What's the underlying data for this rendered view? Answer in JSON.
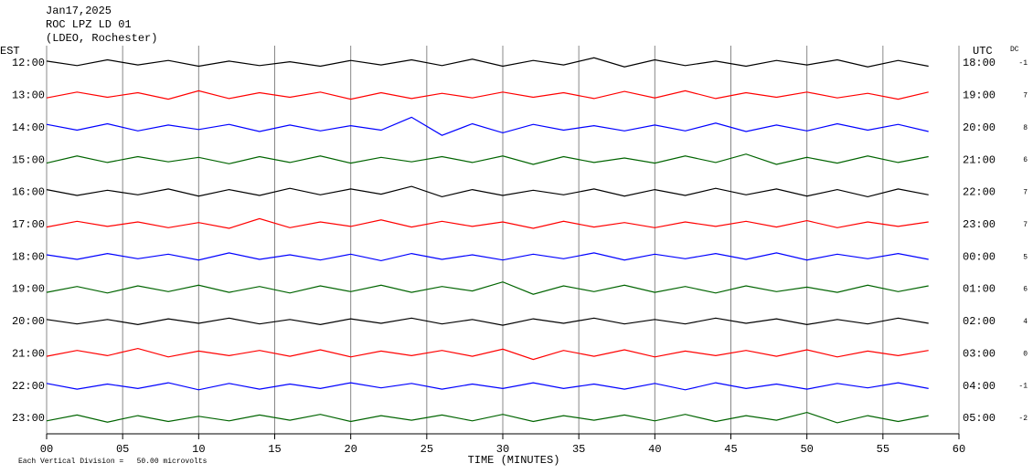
{
  "header": [
    "Jan17,2025",
    "ROC LPZ LD 01",
    "(LDEO, Rochester)"
  ],
  "chart_data": {
    "type": "line",
    "left_label": "EST",
    "right_label": "UTC",
    "dc_label": "DC",
    "xlabel": "TIME (MINUTES)",
    "footer": "Each Vertical Division =   50.00 microvolts",
    "xlim": [
      0,
      60
    ],
    "xticks": [
      {
        "value": 0,
        "label": "00"
      },
      {
        "value": 5,
        "label": "05"
      },
      10,
      15,
      20,
      25,
      30,
      35,
      40,
      45,
      50,
      55,
      60
    ],
    "ylim": [
      -25,
      25
    ],
    "x": [
      0,
      2,
      4,
      6,
      8,
      10,
      12,
      14,
      16,
      18,
      20,
      22,
      24,
      26,
      28,
      30,
      32,
      34,
      36,
      38,
      40,
      42,
      44,
      46,
      48,
      50,
      52,
      54,
      56,
      58
    ],
    "rows": [
      {
        "est": "12:00",
        "utc": "18:00",
        "dc": -1,
        "color": "#000000",
        "values": [
          3,
          -4,
          5,
          -3,
          4,
          -5,
          3,
          -4,
          2,
          -5,
          4,
          -3,
          5,
          -4,
          6,
          -5,
          4,
          -3,
          8,
          -6,
          5,
          -4,
          3,
          -5,
          4,
          -3,
          5,
          -6,
          4,
          -5
        ]
      },
      {
        "est": "13:00",
        "utc": "19:00",
        "dc": 7,
        "color": "#ff0000",
        "values": [
          -4,
          5,
          -3,
          4,
          -6,
          7,
          -5,
          4,
          -3,
          5,
          -6,
          4,
          -5,
          3,
          -4,
          5,
          -3,
          4,
          -5,
          6,
          -4,
          7,
          -5,
          4,
          -3,
          5,
          -4,
          3,
          -6,
          5
        ]
      },
      {
        "est": "14:00",
        "utc": "20:00",
        "dc": 8,
        "color": "#0000ff",
        "values": [
          5,
          -4,
          6,
          -5,
          4,
          -3,
          5,
          -6,
          4,
          -5,
          3,
          -4,
          16,
          -12,
          6,
          -8,
          5,
          -4,
          3,
          -5,
          4,
          -5,
          7,
          -6,
          4,
          -5,
          6,
          -4,
          5,
          -6
        ]
      },
      {
        "est": "15:00",
        "utc": "21:00",
        "dc": 6,
        "color": "#006400",
        "values": [
          -5,
          6,
          -4,
          5,
          -3,
          4,
          -6,
          5,
          -4,
          6,
          -5,
          4,
          -3,
          5,
          -4,
          6,
          -7,
          5,
          -4,
          3,
          -5,
          6,
          -4,
          9,
          -7,
          4,
          -5,
          6,
          -4,
          5
        ]
      },
      {
        "est": "16:00",
        "utc": "22:00",
        "dc": 7,
        "color": "#000000",
        "values": [
          4,
          -5,
          3,
          -4,
          5,
          -6,
          4,
          -5,
          6,
          -4,
          5,
          -3,
          9,
          -7,
          4,
          -5,
          3,
          -4,
          5,
          -6,
          4,
          -5,
          6,
          -4,
          5,
          -6,
          4,
          -7,
          5,
          -4
        ]
      },
      {
        "est": "17:00",
        "utc": "23:00",
        "dc": 7,
        "color": "#ff0000",
        "values": [
          -4,
          5,
          -3,
          4,
          -5,
          3,
          -6,
          9,
          -5,
          4,
          -3,
          7,
          -4,
          5,
          -3,
          4,
          -6,
          5,
          -4,
          3,
          -5,
          4,
          -3,
          5,
          -4,
          6,
          -5,
          4,
          -3,
          4
        ]
      },
      {
        "est": "18:00",
        "utc": "00:00",
        "dc": 5,
        "color": "#0000ff",
        "values": [
          3,
          -4,
          5,
          -3,
          4,
          -5,
          6,
          -4,
          3,
          -5,
          4,
          -6,
          5,
          -4,
          3,
          -5,
          4,
          -3,
          6,
          -5,
          4,
          -3,
          5,
          -4,
          6,
          -5,
          4,
          -3,
          5,
          -4
        ]
      },
      {
        "est": "19:00",
        "utc": "01:00",
        "dc": 6,
        "color": "#006400",
        "values": [
          -5,
          4,
          -6,
          5,
          -4,
          6,
          -5,
          4,
          -6,
          5,
          -4,
          6,
          -5,
          4,
          -3,
          11,
          -8,
          5,
          -4,
          6,
          -5,
          4,
          -6,
          5,
          -4,
          3,
          -5,
          6,
          -4,
          5
        ]
      },
      {
        "est": "20:00",
        "utc": "02:00",
        "dc": 4,
        "color": "#000000",
        "values": [
          3,
          -4,
          3,
          -5,
          4,
          -3,
          5,
          -4,
          3,
          -5,
          4,
          -3,
          5,
          -4,
          3,
          -6,
          4,
          -3,
          5,
          -4,
          3,
          -4,
          5,
          -3,
          4,
          -5,
          3,
          -4,
          5,
          -3
        ]
      },
      {
        "est": "21:00",
        "utc": "03:00",
        "dc": 0,
        "color": "#ff0000",
        "values": [
          -4,
          5,
          -3,
          8,
          -5,
          4,
          -3,
          5,
          -4,
          6,
          -5,
          4,
          -3,
          5,
          -4,
          7,
          -9,
          5,
          -4,
          6,
          -5,
          4,
          -3,
          5,
          -4,
          6,
          -5,
          4,
          -3,
          5
        ]
      },
      {
        "est": "22:00",
        "utc": "04:00",
        "dc": -1,
        "color": "#0000ff",
        "values": [
          4,
          -5,
          3,
          -4,
          5,
          -6,
          4,
          -5,
          3,
          -4,
          5,
          -3,
          4,
          -5,
          3,
          -4,
          5,
          -4,
          3,
          -5,
          4,
          -6,
          5,
          -4,
          3,
          -5,
          4,
          -3,
          5,
          -4
        ]
      },
      {
        "est": "23:00",
        "utc": "05:00",
        "dc": -2,
        "color": "#006400",
        "values": [
          -4,
          5,
          -6,
          4,
          -5,
          3,
          -4,
          5,
          -3,
          6,
          -5,
          4,
          -3,
          5,
          -4,
          6,
          -5,
          4,
          -3,
          5,
          -4,
          6,
          -5,
          4,
          -3,
          9,
          -7,
          4,
          -5,
          4
        ]
      }
    ]
  }
}
